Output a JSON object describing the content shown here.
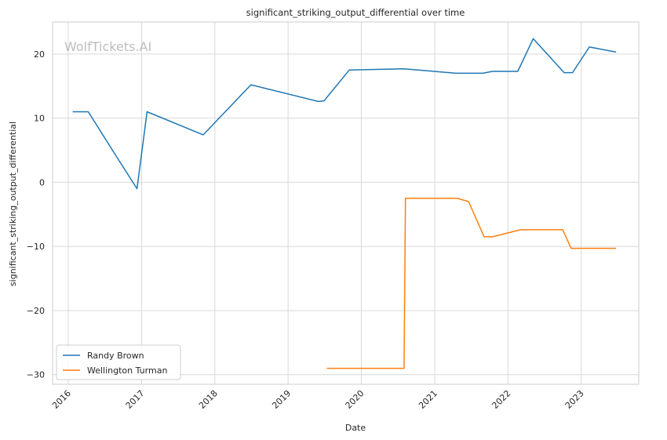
{
  "chart_data": {
    "type": "line",
    "title": "significant_striking_output_differential over time",
    "xlabel": "Date",
    "ylabel": "significant_striking_output_differential",
    "watermark": "WolfTickets.AI",
    "xlim": [
      "2015-10-15",
      "2023-10-15"
    ],
    "ylim": [
      -31.5,
      25
    ],
    "yticks": [
      -30,
      -20,
      -10,
      0,
      10,
      20
    ],
    "xticks": [
      {
        "date": "2016-01-01",
        "label": "2016"
      },
      {
        "date": "2017-01-01",
        "label": "2017"
      },
      {
        "date": "2018-01-01",
        "label": "2018"
      },
      {
        "date": "2019-01-01",
        "label": "2019"
      },
      {
        "date": "2020-01-01",
        "label": "2020"
      },
      {
        "date": "2021-01-01",
        "label": "2021"
      },
      {
        "date": "2022-01-01",
        "label": "2022"
      },
      {
        "date": "2023-01-01",
        "label": "2023"
      }
    ],
    "grid": true,
    "legend_position": "lower-left",
    "series": [
      {
        "name": "Randy Brown",
        "color": "#1f77b4",
        "points": [
          {
            "x": "2016-01-23",
            "y": 11.0
          },
          {
            "x": "2016-04-10",
            "y": 11.0
          },
          {
            "x": "2016-08-27",
            "y": 4.1
          },
          {
            "x": "2016-12-09",
            "y": -1.0
          },
          {
            "x": "2017-01-28",
            "y": 11.0
          },
          {
            "x": "2017-11-04",
            "y": 7.4
          },
          {
            "x": "2018-06-30",
            "y": 15.2
          },
          {
            "x": "2019-06-01",
            "y": 12.6
          },
          {
            "x": "2019-06-29",
            "y": 12.7
          },
          {
            "x": "2019-11-02",
            "y": 17.5
          },
          {
            "x": "2020-08-01",
            "y": 17.7
          },
          {
            "x": "2021-04-17",
            "y": 17.0
          },
          {
            "x": "2021-08-28",
            "y": 17.0
          },
          {
            "x": "2021-10-16",
            "y": 17.3
          },
          {
            "x": "2022-02-19",
            "y": 17.3
          },
          {
            "x": "2022-05-07",
            "y": 22.4
          },
          {
            "x": "2022-10-08",
            "y": 17.1
          },
          {
            "x": "2022-11-19",
            "y": 17.1
          },
          {
            "x": "2023-02-11",
            "y": 21.1
          },
          {
            "x": "2023-06-24",
            "y": 20.3
          }
        ]
      },
      {
        "name": "Wellington Turman",
        "color": "#ff7f0e",
        "points": [
          {
            "x": "2019-07-13",
            "y": -29.0
          },
          {
            "x": "2020-08-01",
            "y": -29.0
          },
          {
            "x": "2020-08-08",
            "y": -2.5
          },
          {
            "x": "2021-04-24",
            "y": -2.5
          },
          {
            "x": "2021-06-19",
            "y": -3.0
          },
          {
            "x": "2021-09-04",
            "y": -8.5
          },
          {
            "x": "2021-10-16",
            "y": -8.5
          },
          {
            "x": "2022-03-05",
            "y": -7.4
          },
          {
            "x": "2022-10-01",
            "y": -7.4
          },
          {
            "x": "2022-11-12",
            "y": -10.3
          },
          {
            "x": "2023-06-24",
            "y": -10.3
          }
        ]
      }
    ]
  }
}
